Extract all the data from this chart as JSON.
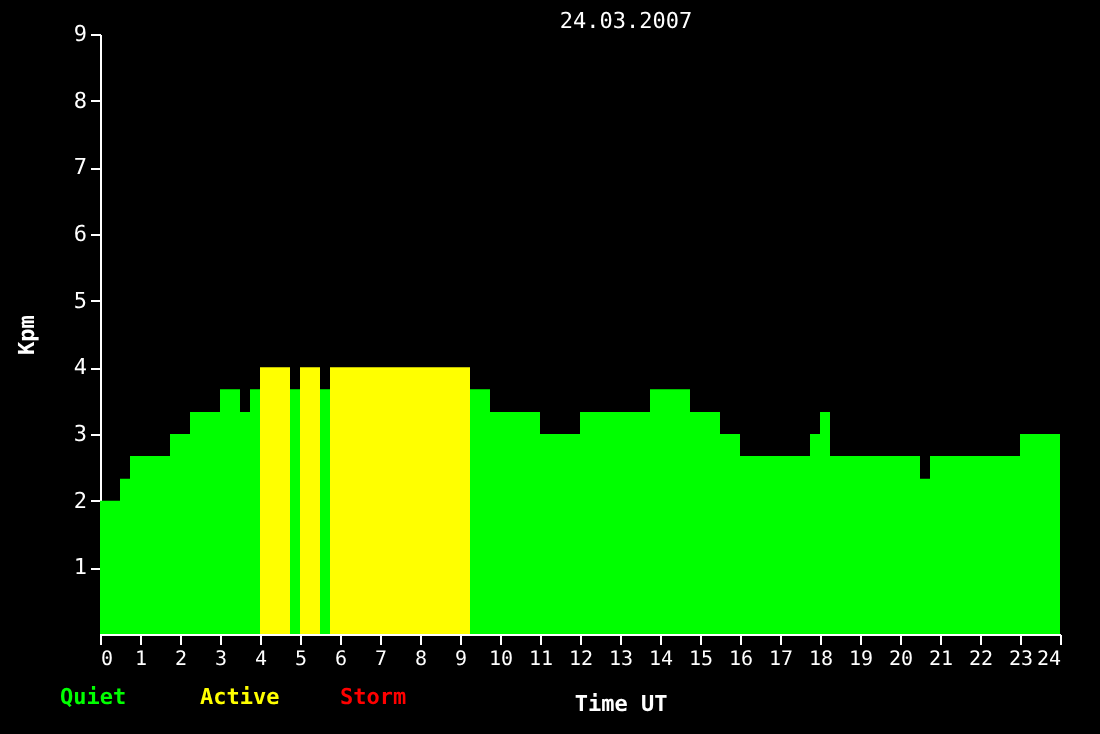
{
  "chart_data": {
    "type": "bar",
    "title": "24.03.2007",
    "xlabel": "Time UT",
    "ylabel": "Kpm",
    "x": [
      0.25,
      0.625,
      1.25,
      2.0,
      2.625,
      3.25,
      3.625,
      3.875,
      4.375,
      4.875,
      5.25,
      5.625,
      7.5,
      9.5,
      10.375,
      11.5,
      12.875,
      14.25,
      15.125,
      15.75,
      16.875,
      17.875,
      18.125,
      19.375,
      20.625,
      21.875,
      23.5
    ],
    "series": [
      {
        "name": "Quiet",
        "color": "#00ff00",
        "values": [
          2.0,
          2.33,
          2.67,
          3.0,
          3.33,
          3.67,
          3.33,
          3.67,
          null,
          3.67,
          null,
          3.67,
          null,
          3.67,
          3.33,
          3.0,
          3.33,
          3.67,
          3.33,
          3.0,
          2.67,
          3.0,
          3.33,
          2.67,
          2.33,
          2.67,
          3.0
        ]
      },
      {
        "name": "Active",
        "color": "#ffff00",
        "values": [
          null,
          null,
          null,
          null,
          null,
          null,
          null,
          null,
          4.0,
          null,
          4.0,
          null,
          4.0,
          null,
          null,
          null,
          null,
          null,
          null,
          null,
          null,
          null,
          null,
          null,
          null,
          null,
          null
        ]
      },
      {
        "name": "Storm",
        "color": "#ff0000",
        "values": [
          null,
          null,
          null,
          null,
          null,
          null,
          null,
          null,
          null,
          null,
          null,
          null,
          null,
          null,
          null,
          null,
          null,
          null,
          null,
          null,
          null,
          null,
          null,
          null,
          null,
          null,
          null
        ]
      }
    ],
    "xlim": [
      0,
      24
    ],
    "xticks": [
      0,
      1,
      2,
      3,
      4,
      5,
      6,
      7,
      8,
      9,
      10,
      11,
      12,
      13,
      14,
      15,
      16,
      17,
      18,
      19,
      20,
      21,
      22,
      23,
      24
    ],
    "ylim": [
      0,
      9
    ],
    "yticks": [
      1,
      2,
      3,
      4,
      5,
      6,
      7,
      8,
      9
    ],
    "grid": false
  }
}
